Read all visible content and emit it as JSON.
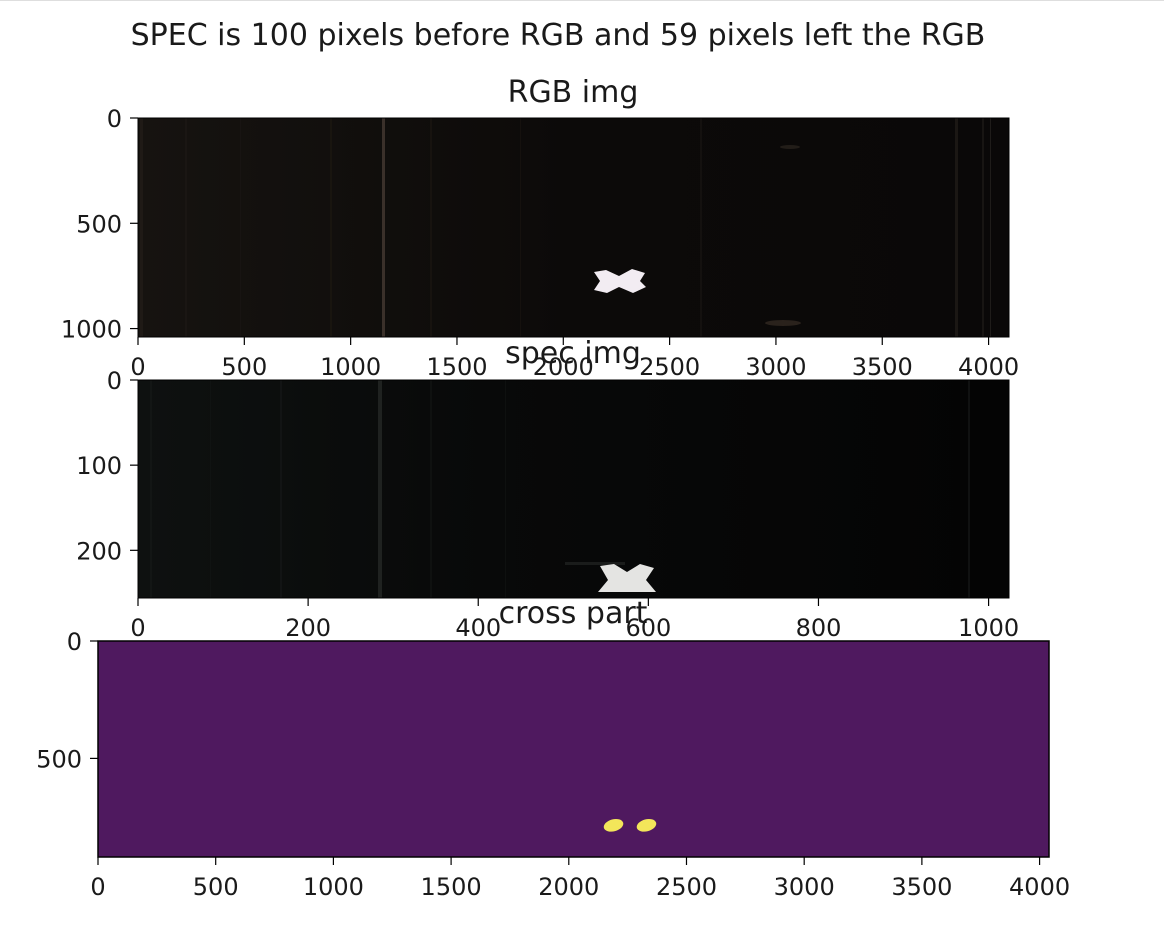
{
  "figure": {
    "suptitle": "SPEC is 100 pixels  before RGB and 59 pixels left the RGB"
  },
  "chart_data": [
    {
      "type": "heatmap",
      "title": "RGB img",
      "xlabel": "",
      "ylabel": "",
      "image_size": [
        4096,
        1040
      ],
      "xlim": [
        0,
        4096
      ],
      "ylim": [
        1040,
        0
      ],
      "xticks": [
        0,
        500,
        1000,
        1500,
        2000,
        2500,
        3000,
        3500,
        4000
      ],
      "yticks": [
        0,
        500,
        1000
      ],
      "colormap": "rgb image (near black)",
      "background_color": "#0a0908",
      "features": [
        {
          "kind": "white cross marker",
          "x": 2270,
          "y": 770,
          "color": "#f0eaf0"
        }
      ],
      "grid": false
    },
    {
      "type": "heatmap",
      "title": "spec img",
      "xlabel": "",
      "ylabel": "",
      "image_size": [
        1024,
        256
      ],
      "xlim": [
        0,
        1024
      ],
      "ylim": [
        256,
        0
      ],
      "xticks": [
        0,
        200,
        400,
        600,
        800,
        1000
      ],
      "yticks": [
        0,
        100,
        200
      ],
      "colormap": "rgb image (near black)",
      "background_color": "#060707",
      "features": [
        {
          "kind": "white cross marker",
          "x": 570,
          "y": 235,
          "color": "#e4e4e2"
        }
      ],
      "grid": false
    },
    {
      "type": "heatmap",
      "title": "cross part",
      "xlabel": "",
      "ylabel": "",
      "image_size": [
        4040,
        920
      ],
      "xlim": [
        0,
        4040
      ],
      "ylim": [
        920,
        0
      ],
      "xticks": [
        0,
        500,
        1000,
        1500,
        2000,
        2500,
        3000,
        3500,
        4000
      ],
      "yticks": [
        0,
        500
      ],
      "colormap": "viridis",
      "background_color": "#4f195f",
      "features": [
        {
          "kind": "blob",
          "x": 2190,
          "y": 785,
          "color": "#f3e65a"
        },
        {
          "kind": "blob",
          "x": 2330,
          "y": 785,
          "color": "#f3e65a"
        }
      ],
      "grid": false
    }
  ]
}
